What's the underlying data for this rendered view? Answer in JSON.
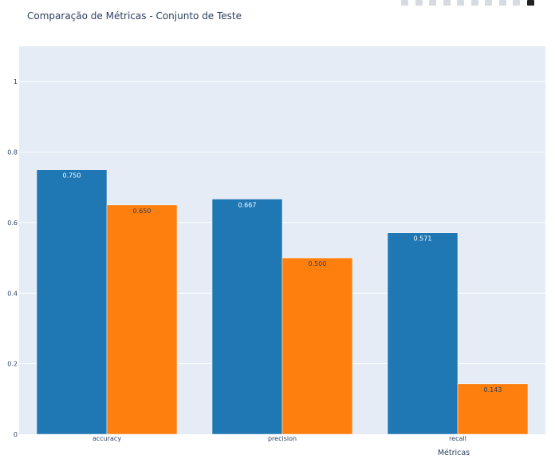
{
  "title": "Comparação de Métricas - Conjunto de Teste",
  "toolbar": {
    "icons": [
      "camera-icon",
      "zoom-icon",
      "pan-icon",
      "box-select-icon",
      "lasso-icon",
      "zoom-in-icon",
      "zoom-out-icon",
      "autoscale-icon",
      "reset-axes-icon",
      "plotly-logo-icon"
    ]
  },
  "colors": {
    "plot_bg": "#e5ecf6",
    "grid": "#ffffff",
    "text": "#2a3f5f",
    "series_blue": "#1f77b4",
    "series_orange": "#ff7f0e"
  },
  "chart_data": {
    "type": "bar",
    "barmode": "group",
    "title": "Comparação de Métricas - Conjunto de Teste",
    "xlabel": "Métricas",
    "ylabel": "",
    "categories": [
      "accuracy",
      "precision",
      "recall"
    ],
    "series": [
      {
        "values": [
          0.75,
          0.667,
          0.571
        ],
        "labels": [
          "0.750",
          "0.667",
          "0.571"
        ],
        "color": "#1f77b4",
        "label_color": "#ffffff"
      },
      {
        "values": [
          0.65,
          0.5,
          0.143
        ],
        "labels": [
          "0.650",
          "0.500",
          "0.143"
        ],
        "color": "#ff7f0e",
        "label_color": "#2a3f5f"
      }
    ],
    "ylim": [
      0,
      1.1
    ],
    "yticks": [
      0,
      0.2,
      0.4,
      0.6,
      0.8,
      1
    ],
    "ytick_labels": [
      "0",
      "0.2",
      "0.4",
      "0.6",
      "0.8",
      "1"
    ],
    "grid": true,
    "legend": "none"
  }
}
